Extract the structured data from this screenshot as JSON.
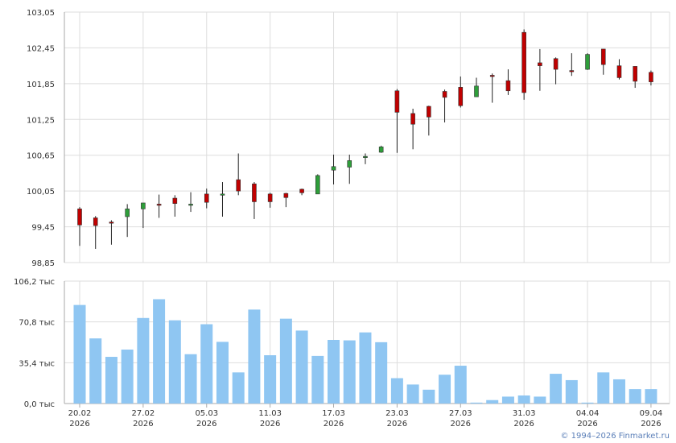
{
  "chart_data": [
    {
      "type": "candlestick",
      "y_ticks": [
        "103,05",
        "102,45",
        "101,85",
        "101,25",
        "100,65",
        "100,05",
        "99,45",
        "98,85"
      ],
      "ylim": [
        98.85,
        103.05
      ],
      "grid": true,
      "candles": [
        {
          "open": 99.75,
          "high": 99.78,
          "low": 99.13,
          "close": 99.48
        },
        {
          "open": 99.6,
          "high": 99.63,
          "low": 99.08,
          "close": 99.47
        },
        {
          "open": 99.53,
          "high": 99.56,
          "low": 99.15,
          "close": 99.52
        },
        {
          "open": 99.62,
          "high": 99.83,
          "low": 99.28,
          "close": 99.75
        },
        {
          "open": 99.75,
          "high": 99.85,
          "low": 99.43,
          "close": 99.85
        },
        {
          "open": 99.83,
          "high": 99.99,
          "low": 99.6,
          "close": 99.82
        },
        {
          "open": 99.93,
          "high": 99.98,
          "low": 99.62,
          "close": 99.84
        },
        {
          "open": 99.82,
          "high": 100.03,
          "low": 99.7,
          "close": 99.83
        },
        {
          "open": 100.0,
          "high": 100.09,
          "low": 99.76,
          "close": 99.86
        },
        {
          "open": 100.0,
          "high": 100.2,
          "low": 99.62,
          "close": 100.0
        },
        {
          "open": 100.24,
          "high": 100.68,
          "low": 99.98,
          "close": 100.05
        },
        {
          "open": 100.17,
          "high": 100.2,
          "low": 99.58,
          "close": 99.87
        },
        {
          "open": 100.0,
          "high": 100.02,
          "low": 99.77,
          "close": 99.87
        },
        {
          "open": 100.01,
          "high": 100.02,
          "low": 99.78,
          "close": 99.94
        },
        {
          "open": 100.08,
          "high": 100.09,
          "low": 99.98,
          "close": 100.02
        },
        {
          "open": 100.0,
          "high": 100.33,
          "low": 100.0,
          "close": 100.31
        },
        {
          "open": 100.4,
          "high": 100.66,
          "low": 100.16,
          "close": 100.46
        },
        {
          "open": 100.45,
          "high": 100.66,
          "low": 100.17,
          "close": 100.56
        },
        {
          "open": 100.63,
          "high": 100.68,
          "low": 100.5,
          "close": 100.63
        },
        {
          "open": 100.7,
          "high": 100.81,
          "low": 100.69,
          "close": 100.79
        },
        {
          "open": 101.73,
          "high": 101.76,
          "low": 100.69,
          "close": 101.37
        },
        {
          "open": 101.35,
          "high": 101.43,
          "low": 100.75,
          "close": 101.17
        },
        {
          "open": 101.47,
          "high": 101.48,
          "low": 100.98,
          "close": 101.29
        },
        {
          "open": 101.72,
          "high": 101.75,
          "low": 101.2,
          "close": 101.62
        },
        {
          "open": 101.79,
          "high": 101.97,
          "low": 101.45,
          "close": 101.48
        },
        {
          "open": 101.63,
          "high": 101.95,
          "low": 101.63,
          "close": 101.81
        },
        {
          "open": 101.99,
          "high": 102.02,
          "low": 101.53,
          "close": 101.97
        },
        {
          "open": 101.9,
          "high": 102.09,
          "low": 101.66,
          "close": 101.73
        },
        {
          "open": 102.71,
          "high": 102.76,
          "low": 101.58,
          "close": 101.7
        },
        {
          "open": 102.2,
          "high": 102.43,
          "low": 101.73,
          "close": 102.15
        },
        {
          "open": 102.27,
          "high": 102.29,
          "low": 101.84,
          "close": 102.09
        },
        {
          "open": 102.07,
          "high": 102.36,
          "low": 101.98,
          "close": 102.05
        },
        {
          "open": 102.09,
          "high": 102.36,
          "low": 102.08,
          "close": 102.34
        },
        {
          "open": 102.43,
          "high": 102.43,
          "low": 102.0,
          "close": 102.17
        },
        {
          "open": 102.15,
          "high": 102.26,
          "low": 101.92,
          "close": 101.95
        },
        {
          "open": 102.14,
          "high": 102.14,
          "low": 101.78,
          "close": 101.89
        },
        {
          "open": 102.04,
          "high": 102.07,
          "low": 101.82,
          "close": 101.88
        }
      ]
    },
    {
      "type": "bar",
      "y_ticks": [
        "106,2 тыс",
        "70,8 тыс",
        "35,4 тыс",
        "0,0 тыс"
      ],
      "ylim": [
        0,
        106.2
      ],
      "y_unit": "тыс",
      "grid": true,
      "values": [
        85.5,
        56.5,
        40.5,
        46.8,
        74.2,
        90.5,
        72.2,
        42.8,
        68.8,
        53.5,
        27.0,
        81.5,
        41.9,
        73.6,
        63.3,
        41.3,
        55.2,
        54.8,
        61.7,
        53.2,
        22.0,
        16.5,
        12.0,
        25.0,
        32.8,
        0.8,
        3.0,
        6.0,
        7.0,
        6.0,
        25.8,
        20.3,
        0.8,
        27.0,
        21.0,
        12.5,
        12.5
      ]
    }
  ],
  "x_axis": {
    "labels": [
      {
        "date": "20.02",
        "year": "2026"
      },
      {
        "date": "27.02",
        "year": "2026"
      },
      {
        "date": "05.03",
        "year": "2026"
      },
      {
        "date": "11.03",
        "year": "2026"
      },
      {
        "date": "17.03",
        "year": "2026"
      },
      {
        "date": "23.03",
        "year": "2026"
      },
      {
        "date": "27.03",
        "year": "2026"
      },
      {
        "date": "31.03",
        "year": "2026"
      },
      {
        "date": "04.04",
        "year": "2026"
      },
      {
        "date": "09.04",
        "year": "2026"
      }
    ]
  },
  "colors": {
    "up": "#2e9e3a",
    "down": "#c00000",
    "volume": "#8fc6f2",
    "grid": "#dddddd",
    "axis": "#aaaaaa"
  },
  "copyright": "© 1994–2026 Finmarket.ru"
}
